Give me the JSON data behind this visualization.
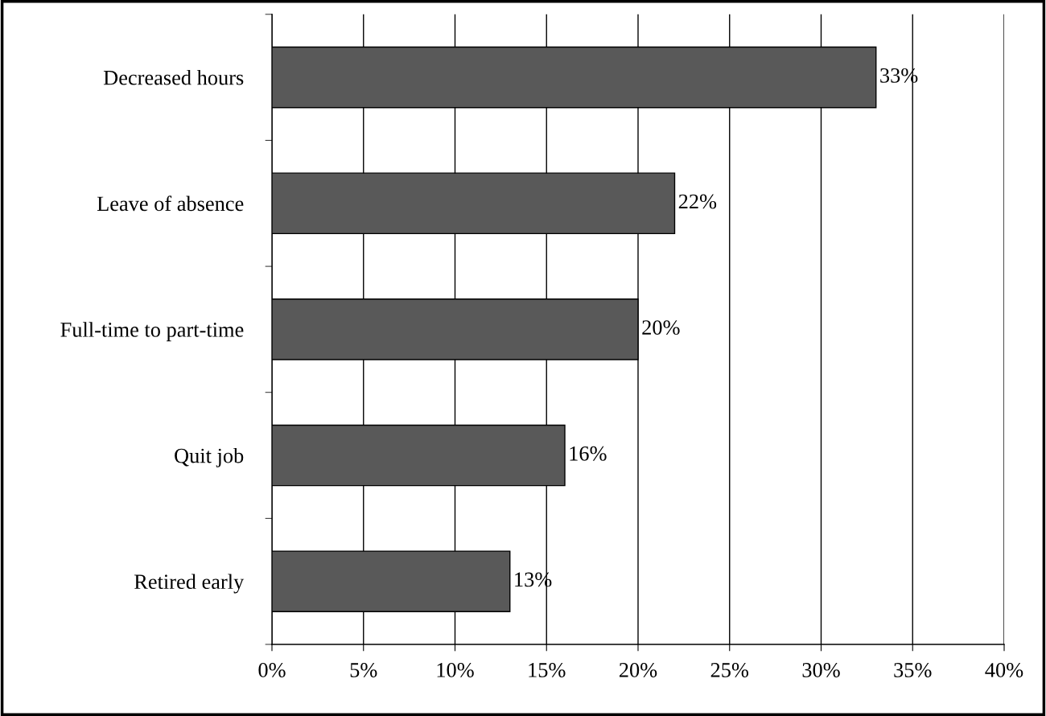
{
  "chart_data": {
    "type": "bar",
    "orientation": "horizontal",
    "categories": [
      "Decreased hours",
      "Leave of absence",
      "Full-time to part-time",
      "Quit job",
      "Retired early"
    ],
    "values": [
      33,
      22,
      20,
      16,
      13
    ],
    "value_labels": [
      "33%",
      "22%",
      "20%",
      "16%",
      "13%"
    ],
    "color": "#595959",
    "xlim": [
      0,
      40
    ],
    "xticks": [
      {
        "value": 0,
        "label": "0%"
      },
      {
        "value": 5,
        "label": "5%"
      },
      {
        "value": 10,
        "label": "10%"
      },
      {
        "value": 15,
        "label": "15%"
      },
      {
        "value": 20,
        "label": "20%"
      },
      {
        "value": 25,
        "label": "25%"
      },
      {
        "value": 30,
        "label": "30%"
      },
      {
        "value": 35,
        "label": "35%"
      },
      {
        "value": 40,
        "label": "40%"
      }
    ],
    "grid": "x",
    "legend": false
  }
}
